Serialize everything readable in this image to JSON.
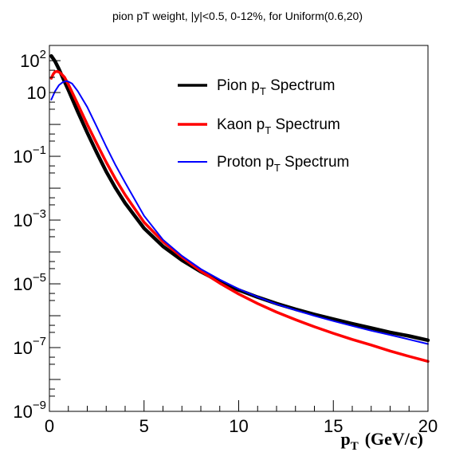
{
  "chart_data": {
    "type": "line",
    "title": "pion pT weight, |y|<0.5, 0-12%, for Uniform(0.6,20)",
    "xlabel": "p_T (GeV/c)",
    "xlabel_main": "p",
    "xlabel_sub": "T",
    "xlabel_unit": "(GeV/c)",
    "ylabel": "",
    "xlim": [
      0,
      20
    ],
    "ylim": [
      1e-09,
      300
    ],
    "ylog": true,
    "grid": false,
    "legend_position": "top-right",
    "x_ticks": [
      {
        "value": 0,
        "label": "0"
      },
      {
        "value": 5,
        "label": "5"
      },
      {
        "value": 10,
        "label": "10"
      },
      {
        "value": 15,
        "label": "15"
      },
      {
        "value": 20,
        "label": "20"
      }
    ],
    "y_ticks": [
      {
        "value": 100,
        "base": "10",
        "exp": "2"
      },
      {
        "value": 10,
        "base": "10",
        "exp": ""
      },
      {
        "value": 0.1,
        "base": "10",
        "exp": "−1"
      },
      {
        "value": 0.001,
        "base": "10",
        "exp": "−3"
      },
      {
        "value": 1e-05,
        "base": "10",
        "exp": "−5"
      },
      {
        "value": 1e-07,
        "base": "10",
        "exp": "−7"
      },
      {
        "value": 1e-09,
        "base": "10",
        "exp": "−9"
      }
    ],
    "series": [
      {
        "name": "Pion p_T Spectrum",
        "label_main": "Pion p",
        "label_sub": "T",
        "label_tail": " Spectrum",
        "color": "#000000",
        "width": 4.5,
        "x": [
          0.1,
          0.3,
          0.5,
          0.8,
          1.0,
          1.5,
          2.0,
          2.5,
          3.0,
          3.5,
          4.0,
          5.0,
          6.0,
          7.0,
          8.0,
          9.0,
          10.0,
          11.0,
          12.0,
          13.0,
          14.0,
          15.0,
          16.0,
          17.0,
          18.0,
          19.0,
          20.0
        ],
        "y": [
          140,
          95,
          55,
          22,
          12,
          2.5,
          0.55,
          0.13,
          0.033,
          0.01,
          0.0034,
          0.00055,
          0.00015,
          5.5e-05,
          2.4e-05,
          1.18e-05,
          6.4e-06,
          3.8e-06,
          2.4e-06,
          1.6e-06,
          1.1e-06,
          7.8e-07,
          5.6e-07,
          4.1e-07,
          3e-07,
          2.3e-07,
          1.7e-07
        ]
      },
      {
        "name": "Kaon p_T Spectrum",
        "label_main": "Kaon p",
        "label_sub": "T",
        "label_tail": " Spectrum",
        "color": "#ff0000",
        "width": 3.5,
        "x": [
          0.1,
          0.2,
          0.3,
          0.4,
          0.5,
          0.6,
          0.8,
          1.0,
          1.5,
          2.0,
          2.5,
          3.0,
          3.5,
          4.0,
          5.0,
          6.0,
          7.0,
          8.0,
          9.0,
          10.0,
          11.0,
          12.0,
          13.0,
          14.0,
          15.0,
          16.0,
          17.0,
          18.0,
          19.0,
          20.0
        ],
        "y": [
          28,
          38,
          45,
          46,
          44,
          40,
          30,
          18,
          4.3,
          1.0,
          0.25,
          0.065,
          0.019,
          0.0062,
          0.00085,
          0.00021,
          6.9e-05,
          2.5e-05,
          1.05e-05,
          4.8e-06,
          2.4e-06,
          1.3e-06,
          7.5e-07,
          4.5e-07,
          2.8e-07,
          1.8e-07,
          1.2e-07,
          7.8e-08,
          5.3e-08,
          3.7e-08
        ]
      },
      {
        "name": "Proton p_T Spectrum",
        "label_main": "Proton p",
        "label_sub": "T",
        "label_tail": " Spectrum",
        "color": "#0000ff",
        "width": 2,
        "x": [
          0.1,
          0.3,
          0.5,
          0.7,
          0.9,
          1.0,
          1.2,
          1.5,
          2.0,
          2.5,
          3.0,
          3.5,
          4.0,
          5.0,
          6.0,
          7.0,
          8.0,
          9.0,
          10.0,
          11.0,
          12.0,
          13.0,
          14.0,
          15.0,
          16.0,
          17.0,
          18.0,
          19.0,
          20.0
        ],
        "y": [
          6,
          11,
          17,
          21,
          23,
          22,
          19,
          11,
          3.5,
          0.85,
          0.2,
          0.052,
          0.015,
          0.00135,
          0.00024,
          7.5e-05,
          2.9e-05,
          1.35e-05,
          6.9e-06,
          3.9e-06,
          2.3e-06,
          1.5e-06,
          9.9e-07,
          6.8e-07,
          4.8e-07,
          3.4e-07,
          2.5e-07,
          1.8e-07,
          1.3e-07
        ]
      }
    ]
  }
}
